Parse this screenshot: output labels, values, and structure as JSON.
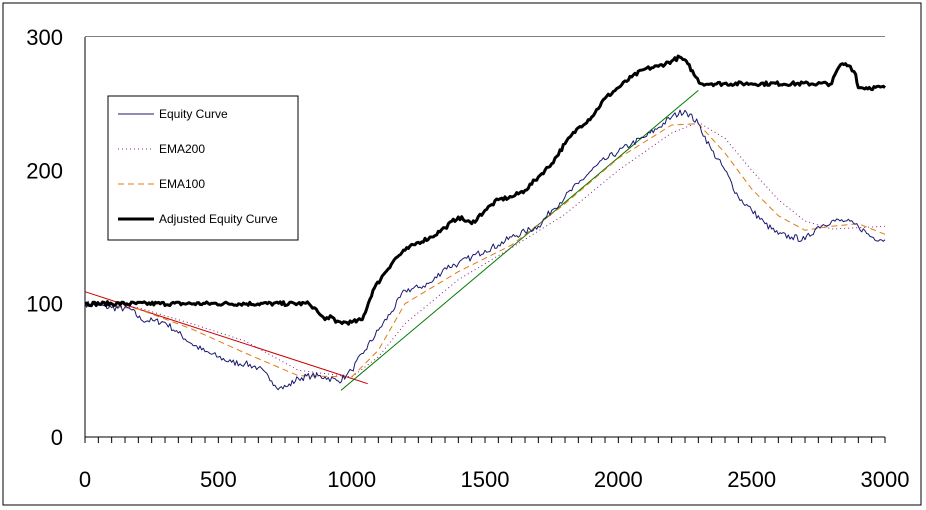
{
  "chart_data": {
    "type": "line",
    "xlim": [
      0,
      3000
    ],
    "ylim": [
      0,
      300
    ],
    "x_ticks": [
      0,
      500,
      1000,
      1500,
      2000,
      2500,
      3000
    ],
    "y_ticks": [
      0,
      100,
      200,
      300
    ],
    "x_tick_labels": [
      "0",
      "500",
      "1000",
      "1500",
      "2000",
      "2500",
      "3000"
    ],
    "y_tick_labels": [
      "0",
      "100",
      "200",
      "300"
    ],
    "grid": "horizontal",
    "legend_position": "upper-left",
    "series": [
      {
        "name": "Equity Curve",
        "color": "#1a1a6e",
        "style": "solid",
        "points": [
          [
            0,
            100
          ],
          [
            100,
            97
          ],
          [
            170,
            96
          ],
          [
            210,
            88
          ],
          [
            260,
            87
          ],
          [
            300,
            86
          ],
          [
            350,
            78
          ],
          [
            400,
            70
          ],
          [
            450,
            64
          ],
          [
            500,
            60
          ],
          [
            550,
            56
          ],
          [
            600,
            55
          ],
          [
            650,
            52
          ],
          [
            700,
            42
          ],
          [
            730,
            37
          ],
          [
            760,
            38
          ],
          [
            800,
            44
          ],
          [
            850,
            46
          ],
          [
            900,
            45
          ],
          [
            950,
            42
          ],
          [
            980,
            46
          ],
          [
            1000,
            50
          ],
          [
            1050,
            65
          ],
          [
            1100,
            80
          ],
          [
            1150,
            94
          ],
          [
            1200,
            110
          ],
          [
            1250,
            112
          ],
          [
            1300,
            116
          ],
          [
            1350,
            127
          ],
          [
            1400,
            130
          ],
          [
            1450,
            135
          ],
          [
            1500,
            140
          ],
          [
            1550,
            144
          ],
          [
            1600,
            150
          ],
          [
            1650,
            154
          ],
          [
            1700,
            158
          ],
          [
            1750,
            170
          ],
          [
            1800,
            180
          ],
          [
            1850,
            190
          ],
          [
            1900,
            200
          ],
          [
            1950,
            208
          ],
          [
            2000,
            214
          ],
          [
            2050,
            220
          ],
          [
            2100,
            225
          ],
          [
            2150,
            232
          ],
          [
            2200,
            240
          ],
          [
            2250,
            245
          ],
          [
            2300,
            235
          ],
          [
            2350,
            215
          ],
          [
            2400,
            200
          ],
          [
            2450,
            180
          ],
          [
            2500,
            170
          ],
          [
            2550,
            160
          ],
          [
            2600,
            152
          ],
          [
            2650,
            150
          ],
          [
            2700,
            148
          ],
          [
            2750,
            158
          ],
          [
            2800,
            162
          ],
          [
            2850,
            162
          ],
          [
            2900,
            158
          ],
          [
            2950,
            150
          ],
          [
            3000,
            148
          ]
        ]
      },
      {
        "name": "EMA200",
        "color": "#8b1a8b",
        "style": "dotted",
        "points": [
          [
            0,
            100
          ],
          [
            200,
            97
          ],
          [
            400,
            85
          ],
          [
            600,
            72
          ],
          [
            800,
            50
          ],
          [
            1000,
            45
          ],
          [
            1100,
            60
          ],
          [
            1200,
            85
          ],
          [
            1400,
            118
          ],
          [
            1600,
            142
          ],
          [
            1800,
            167
          ],
          [
            2000,
            200
          ],
          [
            2200,
            228
          ],
          [
            2300,
            236
          ],
          [
            2400,
            224
          ],
          [
            2500,
            200
          ],
          [
            2600,
            178
          ],
          [
            2700,
            162
          ],
          [
            2800,
            156
          ],
          [
            2900,
            157
          ],
          [
            3000,
            158
          ]
        ]
      },
      {
        "name": "EMA100",
        "color": "#e07a10",
        "style": "dashed",
        "points": [
          [
            0,
            100
          ],
          [
            200,
            96
          ],
          [
            400,
            81
          ],
          [
            600,
            63
          ],
          [
            800,
            46
          ],
          [
            1000,
            45
          ],
          [
            1100,
            65
          ],
          [
            1200,
            100
          ],
          [
            1400,
            124
          ],
          [
            1600,
            144
          ],
          [
            1800,
            175
          ],
          [
            2000,
            209
          ],
          [
            2200,
            234
          ],
          [
            2300,
            235
          ],
          [
            2400,
            213
          ],
          [
            2500,
            186
          ],
          [
            2600,
            166
          ],
          [
            2700,
            155
          ],
          [
            2800,
            158
          ],
          [
            2900,
            160
          ],
          [
            3000,
            152
          ]
        ]
      },
      {
        "name": "Adjusted Equity Curve",
        "color": "#000000",
        "style": "solid-thick",
        "points": [
          [
            0,
            100
          ],
          [
            840,
            100
          ],
          [
            860,
            97
          ],
          [
            880,
            92
          ],
          [
            900,
            88
          ],
          [
            920,
            91
          ],
          [
            940,
            86
          ],
          [
            1000,
            86
          ],
          [
            1040,
            88
          ],
          [
            1080,
            110
          ],
          [
            1120,
            122
          ],
          [
            1160,
            133
          ],
          [
            1200,
            140
          ],
          [
            1250,
            146
          ],
          [
            1300,
            150
          ],
          [
            1350,
            157
          ],
          [
            1400,
            165
          ],
          [
            1450,
            160
          ],
          [
            1500,
            170
          ],
          [
            1550,
            178
          ],
          [
            1600,
            180
          ],
          [
            1650,
            185
          ],
          [
            1700,
            195
          ],
          [
            1750,
            205
          ],
          [
            1800,
            220
          ],
          [
            1850,
            232
          ],
          [
            1900,
            240
          ],
          [
            1950,
            254
          ],
          [
            2000,
            262
          ],
          [
            2050,
            270
          ],
          [
            2100,
            276
          ],
          [
            2150,
            278
          ],
          [
            2200,
            282
          ],
          [
            2230,
            285
          ],
          [
            2260,
            280
          ],
          [
            2290,
            270
          ],
          [
            2310,
            265
          ],
          [
            2350,
            265
          ],
          [
            2500,
            265
          ],
          [
            2800,
            265
          ],
          [
            2820,
            275
          ],
          [
            2840,
            280
          ],
          [
            2870,
            278
          ],
          [
            2890,
            272
          ],
          [
            2900,
            262
          ],
          [
            3000,
            262
          ]
        ]
      }
    ],
    "trend_lines": [
      {
        "color": "#cc0000",
        "from": [
          0,
          109
        ],
        "to": [
          1060,
          40
        ]
      },
      {
        "color": "#007a00",
        "from": [
          960,
          35
        ],
        "to": [
          2300,
          260
        ]
      }
    ]
  },
  "legend": {
    "items": [
      {
        "label": "Equity Curve"
      },
      {
        "label": "EMA200"
      },
      {
        "label": "EMA100"
      },
      {
        "label": "Adjusted Equity Curve"
      }
    ]
  }
}
